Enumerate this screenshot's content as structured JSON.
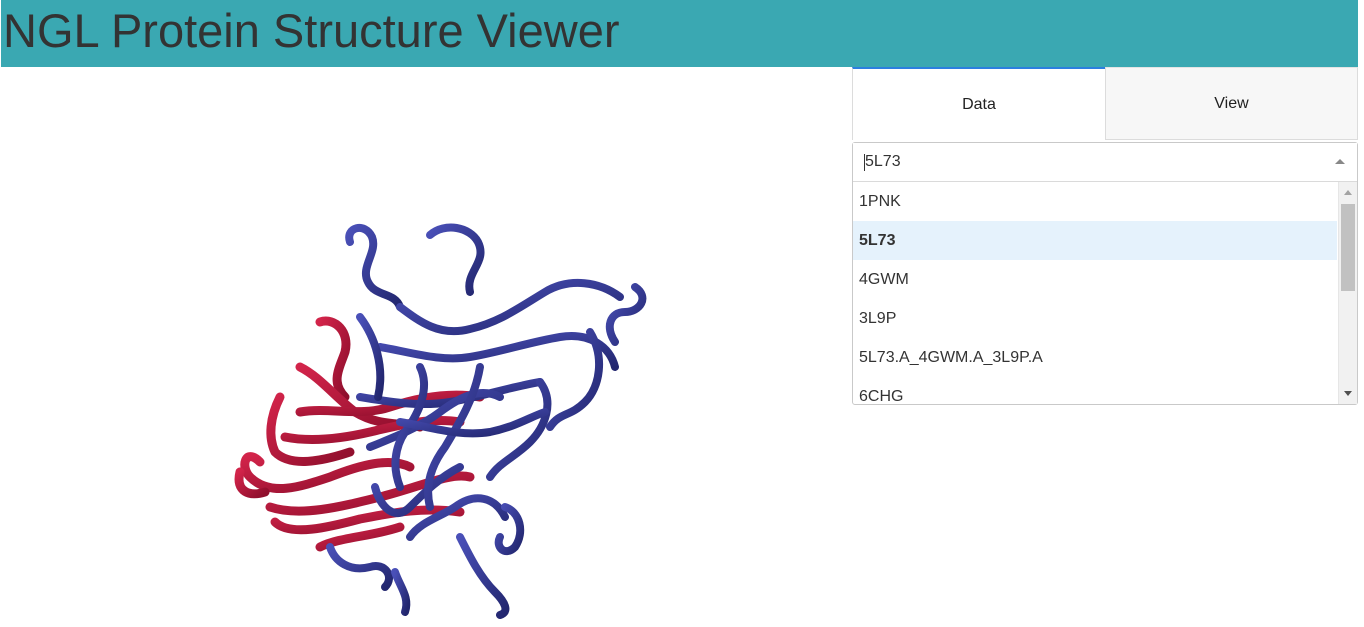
{
  "header": {
    "title": "NGL Protein Structure Viewer"
  },
  "tabs": [
    {
      "label": "Data",
      "active": true
    },
    {
      "label": "View",
      "active": false
    }
  ],
  "structure_select": {
    "value": "5L73",
    "options": [
      {
        "label": "1PNK",
        "selected": false
      },
      {
        "label": "5L73",
        "selected": true
      },
      {
        "label": "4GWM",
        "selected": false
      },
      {
        "label": "3L9P",
        "selected": false
      },
      {
        "label": "5L73.A_4GWM.A_3L9P.A",
        "selected": false
      },
      {
        "label": "6CHG",
        "selected": false
      }
    ]
  },
  "colors": {
    "header_bg": "#3aa8b2",
    "chain_a": "#3a3f9e",
    "chain_b": "#b0123a",
    "active_tab_accent": "#2b7fe0",
    "selected_option_bg": "#e5f2fc"
  },
  "icons": {
    "dropdown": "chevron-up-icon",
    "scroll_up": "triangle-up-icon",
    "scroll_down": "triangle-down-icon"
  }
}
